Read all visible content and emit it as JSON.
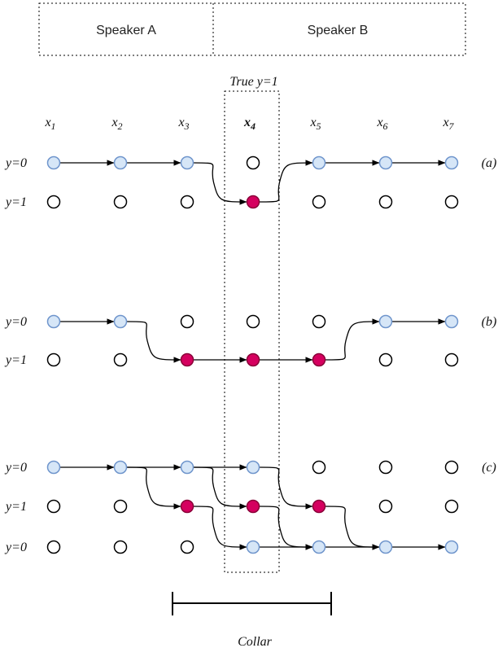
{
  "header": {
    "speakers": [
      "Speaker A",
      "Speaker B"
    ]
  },
  "true_label": "True y=1",
  "columns": [
    {
      "symbol": "x",
      "index": "1"
    },
    {
      "symbol": "x",
      "index": "2"
    },
    {
      "symbol": "x",
      "index": "3"
    },
    {
      "symbol": "x",
      "index": "4"
    },
    {
      "symbol": "x",
      "index": "5"
    },
    {
      "symbol": "x",
      "index": "6"
    },
    {
      "symbol": "x",
      "index": "7"
    }
  ],
  "panels": [
    {
      "label": "(a)",
      "rows": [
        "y=0",
        "y=1"
      ]
    },
    {
      "label": "(b)",
      "rows": [
        "y=0",
        "y=1"
      ]
    },
    {
      "label": "(c)",
      "rows": [
        "y=0",
        "y=1",
        "y=0"
      ]
    }
  ],
  "collar": "Collar"
}
